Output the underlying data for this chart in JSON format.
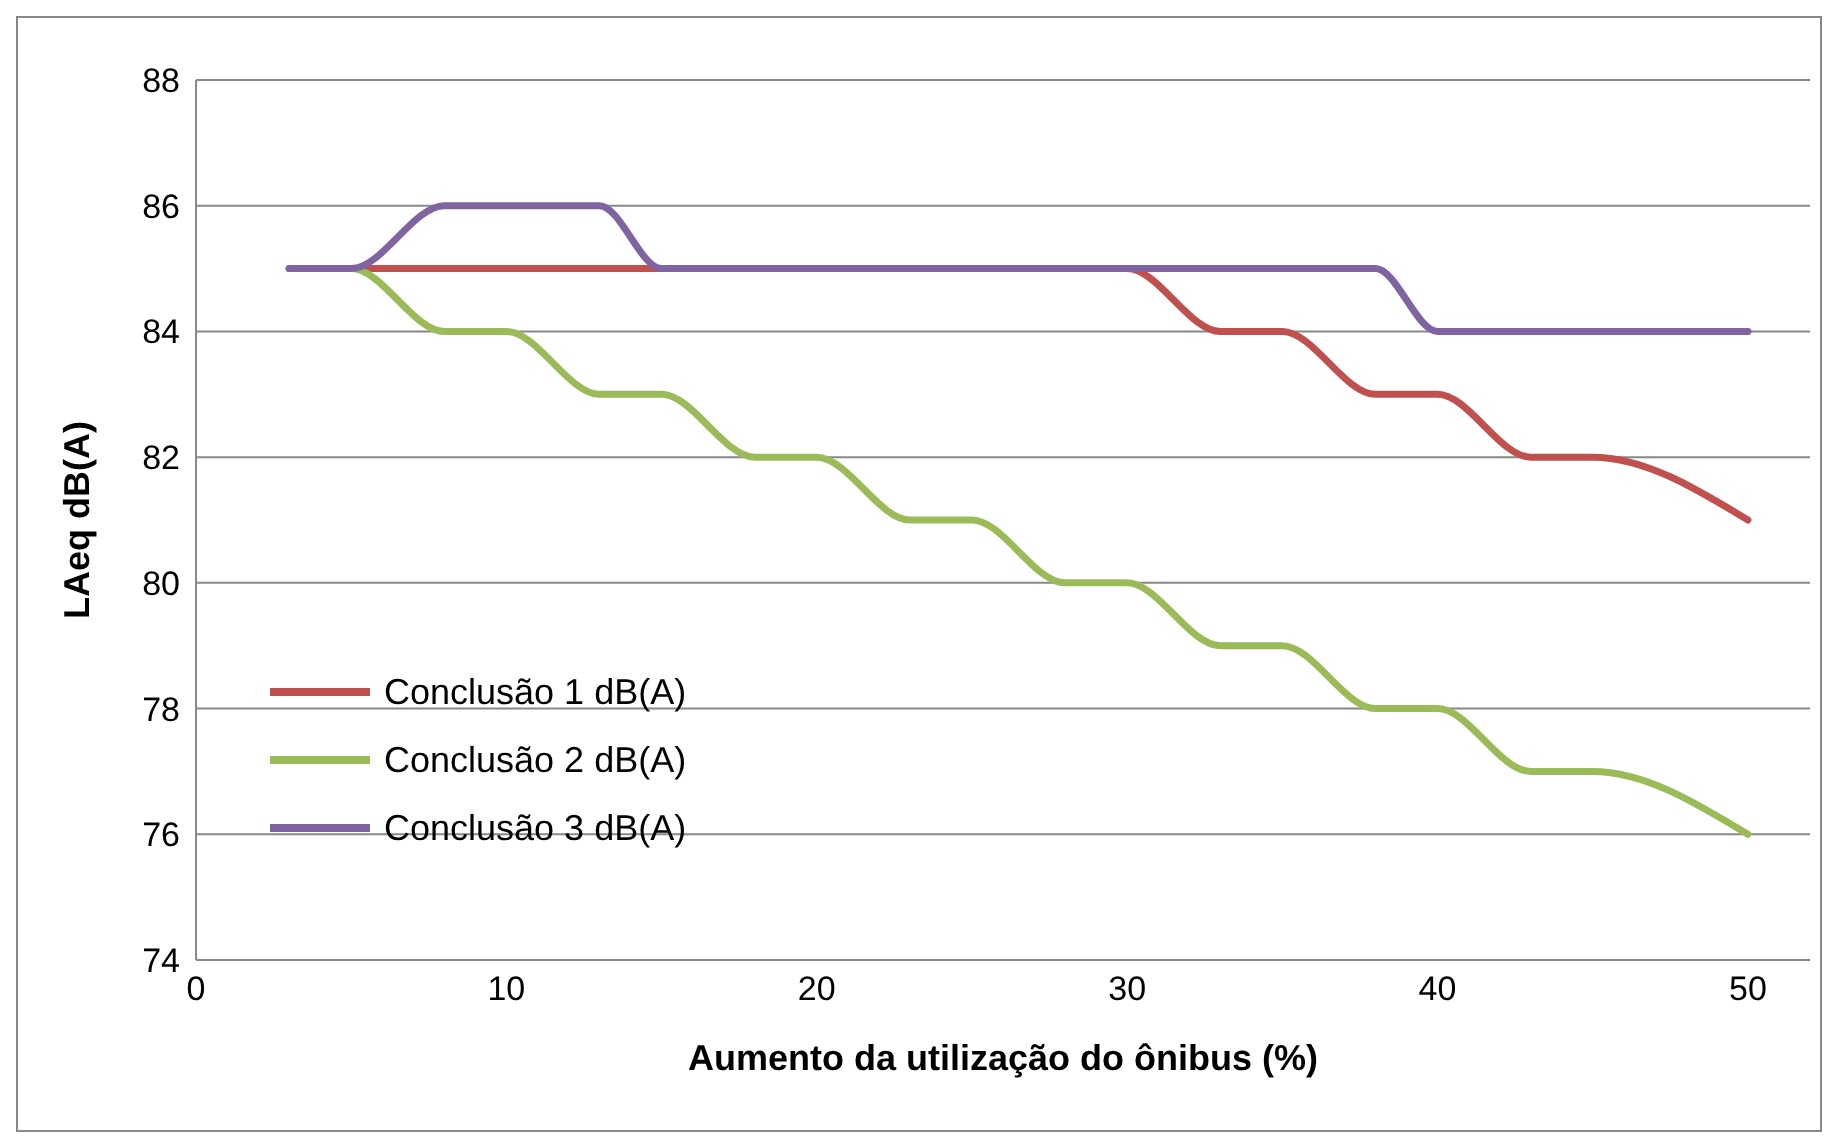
{
  "chart_data": {
    "type": "line",
    "xlabel": "Aumento da utilização  do ônibus (%)",
    "ylabel": "LAeq dB(A)",
    "x": [
      3,
      5,
      8,
      10,
      13,
      15,
      18,
      20,
      23,
      25,
      28,
      30,
      33,
      35,
      38,
      40,
      43,
      45,
      50
    ],
    "series": [
      {
        "name": "Conclusão 1 dB(A)",
        "color": "#c0504d",
        "values": [
          85,
          85,
          85,
          85,
          85,
          85,
          85,
          85,
          85,
          85,
          85,
          85,
          84,
          84,
          83,
          83,
          82,
          82,
          81
        ]
      },
      {
        "name": "Conclusão 2 dB(A)",
        "color": "#9bbb59",
        "values": [
          85,
          85,
          84,
          84,
          83,
          83,
          82,
          82,
          81,
          81,
          80,
          80,
          79,
          79,
          78,
          78,
          77,
          77,
          76
        ]
      },
      {
        "name": "Conclusão 3 dB(A)",
        "color": "#8064a2",
        "values": [
          85,
          85,
          86,
          86,
          86,
          85,
          85,
          85,
          85,
          85,
          85,
          85,
          85,
          85,
          85,
          84,
          84,
          84,
          84
        ]
      }
    ],
    "xlim": [
      0,
      52
    ],
    "xticks": [
      0,
      10,
      20,
      30,
      40,
      50
    ],
    "ylim": [
      74,
      88
    ],
    "yticks": [
      74,
      76,
      78,
      80,
      82,
      84,
      86,
      88
    ],
    "grid": "y",
    "legend": "bottom left",
    "marker": "none",
    "line_style": "solid"
  }
}
